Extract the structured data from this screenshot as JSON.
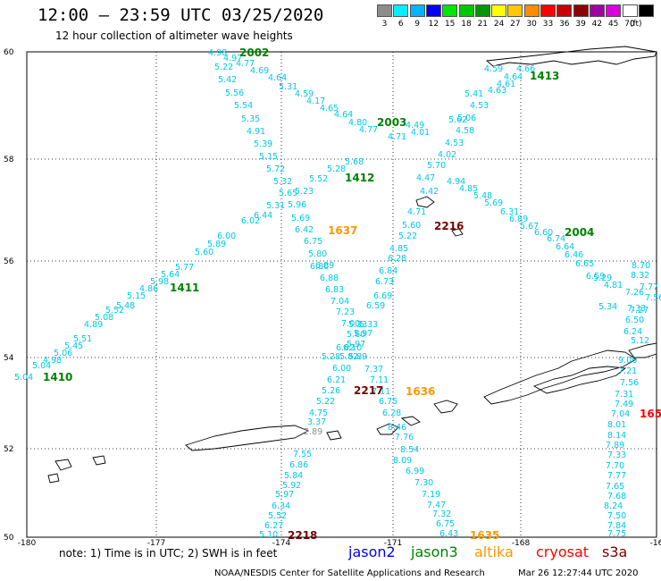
{
  "header": {
    "title": "12:00 – 23:59 UTC 03/25/2020",
    "subtitle": "12 hour collection of altimeter wave heights"
  },
  "scale": {
    "unit": "(ft)",
    "boxes": [
      {
        "label": "3",
        "color": "#8c8c8c"
      },
      {
        "label": "6",
        "color": "#00f0ff"
      },
      {
        "label": "9",
        "color": "#00b4ff"
      },
      {
        "label": "12",
        "color": "#0000ff"
      },
      {
        "label": "15",
        "color": "#00e600"
      },
      {
        "label": "18",
        "color": "#00c800"
      },
      {
        "label": "21",
        "color": "#009600"
      },
      {
        "label": "24",
        "color": "#ffff00"
      },
      {
        "label": "27",
        "color": "#ffc800"
      },
      {
        "label": "30",
        "color": "#ff8c00"
      },
      {
        "label": "33",
        "color": "#ff0000"
      },
      {
        "label": "36",
        "color": "#c80000"
      },
      {
        "label": "39",
        "color": "#8c0000"
      },
      {
        "label": "42",
        "color": "#a000a0"
      },
      {
        "label": "45",
        "color": "#dc00dc"
      },
      {
        "label": "70",
        "color": "#ffffff"
      },
      {
        "label": "",
        "color": "#000000"
      }
    ]
  },
  "map": {
    "lat_labels": [
      "60",
      "58",
      "56",
      "54",
      "52",
      "50"
    ],
    "lon_labels": [
      "-180",
      "-177",
      "-174",
      "-171",
      "-168",
      "-16"
    ],
    "colors": {
      "swh": "#00c8e6",
      "swh_low": "#8c8c8c",
      "jason2": "#0000ff",
      "jason3": "#008200",
      "altika": "#ff9600",
      "cryosat": "#ff0000",
      "s3a": "#780000",
      "grid": "#000000"
    },
    "track_labels": [
      {
        "text": "2002",
        "sat": "jason3"
      },
      {
        "text": "1413",
        "sat": "jason3"
      },
      {
        "text": "2003",
        "sat": "jason3"
      },
      {
        "text": "1412",
        "sat": "jason3"
      },
      {
        "text": "1637",
        "sat": "altika"
      },
      {
        "text": "2216",
        "sat": "s3a"
      },
      {
        "text": "2004",
        "sat": "jason3"
      },
      {
        "text": "1411",
        "sat": "jason3"
      },
      {
        "text": "1410",
        "sat": "jason3"
      },
      {
        "text": "2217",
        "sat": "s3a"
      },
      {
        "text": "1636",
        "sat": "altika"
      },
      {
        "text": "165",
        "sat": "cryosat"
      },
      {
        "text": "2218",
        "sat": "s3a"
      },
      {
        "text": "1635",
        "sat": "altika"
      }
    ],
    "swh_values": [
      {
        "text": "4.98"
      },
      {
        "text": "4.97"
      },
      {
        "text": "4.77"
      },
      {
        "text": "5.22"
      },
      {
        "text": "4.69"
      },
      {
        "text": "5.42"
      },
      {
        "text": "4.64"
      },
      {
        "text": "5.56"
      },
      {
        "text": "5.31"
      },
      {
        "text": "4.59"
      },
      {
        "text": "5.54"
      },
      {
        "text": "4.17"
      },
      {
        "text": "5.35"
      },
      {
        "text": "4.65"
      },
      {
        "text": "4.91"
      },
      {
        "text": "4.64"
      },
      {
        "text": "5.39"
      },
      {
        "text": "4.80"
      },
      {
        "text": "5.15"
      },
      {
        "text": "4.77"
      },
      {
        "text": "5.72"
      },
      {
        "text": "5.28"
      },
      {
        "text": "5.32"
      },
      {
        "text": "5.68"
      },
      {
        "text": "5.52"
      },
      {
        "text": "5.65"
      },
      {
        "text": "5.23"
      },
      {
        "text": "5.96"
      },
      {
        "text": "5.31"
      },
      {
        "text": "6.44"
      },
      {
        "text": "6.02"
      },
      {
        "text": "5.69"
      },
      {
        "text": "6.42"
      },
      {
        "text": "6.00"
      },
      {
        "text": "5.89"
      },
      {
        "text": "6.75"
      },
      {
        "text": "5.60"
      },
      {
        "text": "5.80"
      },
      {
        "text": "6.80"
      },
      {
        "text": "5.77"
      },
      {
        "text": "6.89"
      },
      {
        "text": "5.64"
      },
      {
        "text": "6.88"
      },
      {
        "text": "5.98"
      },
      {
        "text": "4.86"
      },
      {
        "text": "6.83"
      },
      {
        "text": "5.15"
      },
      {
        "text": "7.04"
      },
      {
        "text": "5.48"
      },
      {
        "text": "5.52"
      },
      {
        "text": "7.23"
      },
      {
        "text": "5.08"
      },
      {
        "text": "7.00"
      },
      {
        "text": "4.89"
      },
      {
        "text": "5.33"
      },
      {
        "text": "5.60"
      },
      {
        "text": "5.97"
      },
      {
        "text": "5.51"
      },
      {
        "text": "6.10"
      },
      {
        "text": "5.45"
      },
      {
        "text": "6.02"
      },
      {
        "text": "5.06"
      },
      {
        "text": "5.28"
      },
      {
        "text": "4.98"
      },
      {
        "text": "5.04"
      },
      {
        "text": "6.00"
      },
      {
        "text": "5.04"
      },
      {
        "text": "6.21"
      },
      {
        "text": "5.26"
      },
      {
        "text": "5.22"
      },
      {
        "text": "4.75"
      },
      {
        "text": "3.37"
      },
      {
        "text": "2.89",
        "low": true
      },
      {
        "text": "7.55"
      },
      {
        "text": "6.86"
      },
      {
        "text": "5.84"
      },
      {
        "text": "5.92"
      },
      {
        "text": "5.97"
      },
      {
        "text": "6.34"
      },
      {
        "text": "5.52"
      },
      {
        "text": "6.27"
      },
      {
        "text": "5.10"
      },
      {
        "text": "4.59"
      },
      {
        "text": "4.66"
      },
      {
        "text": "4.64"
      },
      {
        "text": "4.61"
      },
      {
        "text": "4.63"
      },
      {
        "text": "5.41"
      },
      {
        "text": "4.53"
      },
      {
        "text": "5.62"
      },
      {
        "text": "5.06"
      },
      {
        "text": "4.49"
      },
      {
        "text": "4.01"
      },
      {
        "text": "4.58"
      },
      {
        "text": "4.53"
      },
      {
        "text": "4.71"
      },
      {
        "text": "4.02"
      },
      {
        "text": "5.70"
      },
      {
        "text": "4.47"
      },
      {
        "text": "4.94"
      },
      {
        "text": "4.42"
      },
      {
        "text": "4.85"
      },
      {
        "text": "5.48"
      },
      {
        "text": "4.71"
      },
      {
        "text": "5.69"
      },
      {
        "text": "6.31"
      },
      {
        "text": "5.60"
      },
      {
        "text": "6.89"
      },
      {
        "text": "5.22"
      },
      {
        "text": "5.67"
      },
      {
        "text": "6.60"
      },
      {
        "text": "4.85"
      },
      {
        "text": "6.74"
      },
      {
        "text": "6.28"
      },
      {
        "text": "6.64"
      },
      {
        "text": "6.46"
      },
      {
        "text": "6.84"
      },
      {
        "text": "6.65"
      },
      {
        "text": "6.59"
      },
      {
        "text": "6.73"
      },
      {
        "text": "5.29"
      },
      {
        "text": "6.69"
      },
      {
        "text": "4.81"
      },
      {
        "text": "6.59"
      },
      {
        "text": "5.34"
      },
      {
        "text": "7.27"
      },
      {
        "text": "5.33"
      },
      {
        "text": "5.97"
      },
      {
        "text": "5.82"
      },
      {
        "text": "5.89"
      },
      {
        "text": "7.37"
      },
      {
        "text": "7.11"
      },
      {
        "text": "7.11"
      },
      {
        "text": "6.75"
      },
      {
        "text": "6.28"
      },
      {
        "text": "8.46"
      },
      {
        "text": "7.76"
      },
      {
        "text": "8.54"
      },
      {
        "text": "8.09"
      },
      {
        "text": "6.99"
      },
      {
        "text": "7.30"
      },
      {
        "text": "7.19"
      },
      {
        "text": "7.47"
      },
      {
        "text": "7.32"
      },
      {
        "text": "6.75"
      },
      {
        "text": "6.43"
      },
      {
        "text": "8.70"
      },
      {
        "text": "8.32"
      },
      {
        "text": "7.77"
      },
      {
        "text": "7.26"
      },
      {
        "text": "7.56"
      },
      {
        "text": "7.33"
      },
      {
        "text": "6.50"
      },
      {
        "text": "6.24"
      },
      {
        "text": "5.12"
      },
      {
        "text": "9.06"
      },
      {
        "text": "7.21"
      },
      {
        "text": "7.56"
      },
      {
        "text": "7.31"
      },
      {
        "text": "7.49"
      },
      {
        "text": "7.04"
      },
      {
        "text": "8.01"
      },
      {
        "text": "8.14"
      },
      {
        "text": "7.89"
      },
      {
        "text": "7.33"
      },
      {
        "text": "7.70"
      },
      {
        "text": "7.77"
      },
      {
        "text": "7.65"
      },
      {
        "text": "7.68"
      },
      {
        "text": "8.24"
      },
      {
        "text": "7.50"
      },
      {
        "text": "7.84"
      },
      {
        "text": "7.75"
      }
    ]
  },
  "footer": {
    "note": "note:  1)  Time is in UTC;  2)  SWH is in feet",
    "satellites": [
      {
        "name": "jason2",
        "color": "#0000ff"
      },
      {
        "name": "jason3",
        "color": "#008200"
      },
      {
        "name": "altika",
        "color": "#ff9600"
      },
      {
        "name": "cryosat",
        "color": "#ff0000"
      },
      {
        "name": "s3a",
        "color": "#780000"
      }
    ],
    "credit": "NOAA/NESDIS Center for Satellite Applications and Research",
    "timestamp": "Mar 26 12:27:44 UTC 2020"
  }
}
